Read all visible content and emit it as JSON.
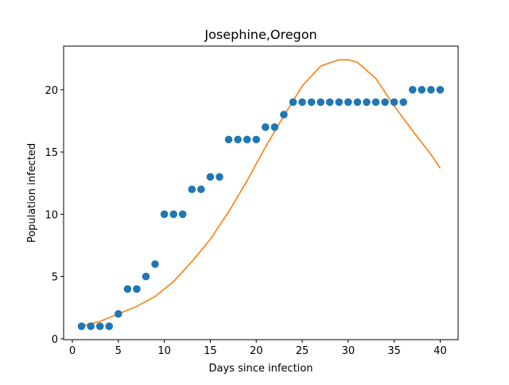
{
  "chart_data": {
    "type": "scatter",
    "title": "Josephine,Oregon",
    "xlabel": "Days since infection",
    "ylabel": "Population infected",
    "xlim": [
      -0.95,
      41.95
    ],
    "ylim": [
      -0.07,
      23.5
    ],
    "xticks": [
      0,
      5,
      10,
      15,
      20,
      25,
      30,
      35,
      40
    ],
    "yticks": [
      0,
      5,
      10,
      15,
      20
    ],
    "grid": false,
    "series": [
      {
        "kind": "scatter",
        "color": "#1f77b4",
        "x": [
          1,
          2,
          3,
          4,
          5,
          6,
          7,
          8,
          9,
          10,
          11,
          12,
          13,
          14,
          15,
          16,
          17,
          18,
          19,
          20,
          21,
          22,
          23,
          24,
          25,
          26,
          27,
          28,
          29,
          30,
          31,
          32,
          33,
          34,
          35,
          36,
          37,
          38,
          39,
          40
        ],
        "y": [
          1,
          1,
          1,
          1,
          2,
          4,
          4,
          5,
          6,
          10,
          10,
          10,
          12,
          12,
          13,
          13,
          16,
          16,
          16,
          16,
          17,
          17,
          18,
          19,
          19,
          19,
          19,
          19,
          19,
          19,
          19,
          19,
          19,
          19,
          19,
          19,
          20,
          20,
          20,
          20
        ]
      },
      {
        "kind": "line",
        "color": "#ff7f0e",
        "x": [
          1,
          3,
          5,
          7,
          9,
          11,
          13,
          15,
          17,
          19,
          21,
          23,
          25,
          27,
          29,
          30,
          31,
          33,
          35,
          37,
          39,
          40
        ],
        "y": [
          1.0,
          1.4,
          2.0,
          2.6,
          3.4,
          4.6,
          6.2,
          8.0,
          10.2,
          12.7,
          15.4,
          17.9,
          20.3,
          21.9,
          22.4,
          22.4,
          22.2,
          20.9,
          18.7,
          16.7,
          14.8,
          13.7
        ]
      }
    ]
  }
}
